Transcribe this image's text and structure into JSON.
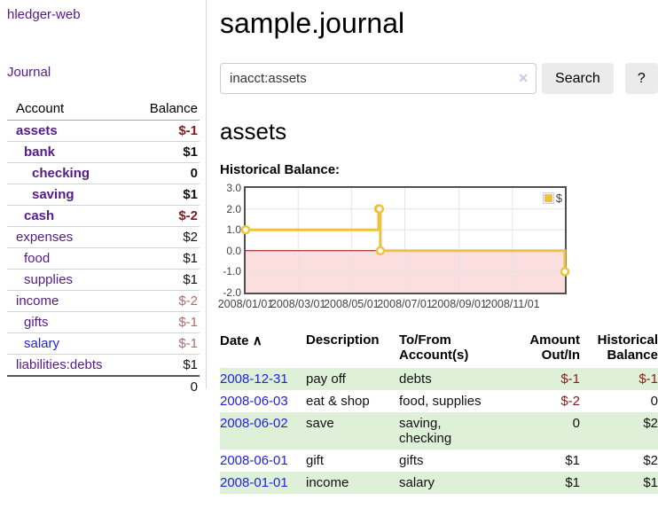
{
  "sidebar": {
    "app_title": "hledger-web",
    "journal_link": "Journal",
    "accounts_header": {
      "account": "Account",
      "balance": "Balance"
    },
    "accounts": [
      {
        "name": "assets",
        "depth": 1,
        "bold": true,
        "balance": "$-1",
        "balance_style": "neg-strong"
      },
      {
        "name": "bank",
        "depth": 2,
        "bold": true,
        "balance": "$1",
        "balance_style": "pos"
      },
      {
        "name": "checking",
        "depth": 3,
        "bold": true,
        "balance": "0",
        "balance_style": "pos"
      },
      {
        "name": "saving",
        "depth": 3,
        "bold": true,
        "balance": "$1",
        "balance_style": "pos"
      },
      {
        "name": "cash",
        "depth": 2,
        "bold": true,
        "balance": "$-2",
        "balance_style": "neg-strong"
      },
      {
        "name": "expenses",
        "depth": 1,
        "bold": false,
        "balance": "$2",
        "balance_style": "pos"
      },
      {
        "name": "food",
        "depth": 2,
        "bold": false,
        "balance": "$1",
        "balance_style": "pos"
      },
      {
        "name": "supplies",
        "depth": 2,
        "bold": false,
        "balance": "$1",
        "balance_style": "pos"
      },
      {
        "name": "income",
        "depth": 1,
        "bold": false,
        "balance": "$-2",
        "balance_style": "neg-muted"
      },
      {
        "name": "gifts",
        "depth": 2,
        "bold": false,
        "balance": "$-1",
        "balance_style": "neg-muted"
      },
      {
        "name": "salary",
        "depth": 2,
        "bold": false,
        "link_color": "blue",
        "balance": "$-1",
        "balance_style": "neg-muted"
      },
      {
        "name": "liabilities:debts",
        "depth": 1,
        "bold": false,
        "balance": "$1",
        "balance_style": "pos"
      }
    ],
    "total": "0"
  },
  "main": {
    "title": "sample.journal",
    "search": {
      "query": "inacct:assets",
      "button_label": "Search",
      "help_label": "?"
    },
    "account_heading": "assets"
  },
  "icons": {
    "clear": "✕",
    "sort_asc": "∧"
  },
  "chart_data": {
    "type": "line",
    "title": "Historical Balance:",
    "steps": true,
    "xlim_days": [
      0,
      365
    ],
    "ylim": [
      -2,
      3
    ],
    "yticks": [
      {
        "v": 3,
        "label": "3.0"
      },
      {
        "v": 2,
        "label": "2.0"
      },
      {
        "v": 1,
        "label": "1.0"
      },
      {
        "v": 0,
        "label": "0.0"
      },
      {
        "v": -1,
        "label": "-1.0"
      },
      {
        "v": -2,
        "label": "-2.0"
      }
    ],
    "xticks": [
      {
        "day": 0,
        "label": "2008/01/01"
      },
      {
        "day": 60,
        "label": "2008/03/01"
      },
      {
        "day": 121,
        "label": "2008/05/01"
      },
      {
        "day": 182,
        "label": "2008/07/01"
      },
      {
        "day": 244,
        "label": "2008/09/01"
      },
      {
        "day": 305,
        "label": "2008/11/01"
      }
    ],
    "series": [
      {
        "name": "$",
        "color": "#edc240",
        "points": [
          {
            "date": "2008-01-01",
            "day": 0,
            "value": 1
          },
          {
            "date": "2008-06-01",
            "day": 152,
            "value": 2
          },
          {
            "date": "2008-06-02",
            "day": 153,
            "value": 2
          },
          {
            "date": "2008-06-03",
            "day": 154,
            "value": 0
          },
          {
            "date": "2008-12-31",
            "day": 365,
            "value": -1
          }
        ]
      }
    ],
    "legend": {
      "label": "$",
      "swatch_color": "#edc240",
      "position": "top-right"
    },
    "negative_region_fill": "#fbdfdf",
    "zero_line_color": "#8b0000",
    "grid_color": "#e4e4e4"
  },
  "register_table": {
    "columns": [
      {
        "label": "Date",
        "align": "left",
        "sorted": true
      },
      {
        "label": "Description",
        "align": "left"
      },
      {
        "label": "To/From Account(s)",
        "align": "left"
      },
      {
        "label": "Amount Out/In",
        "align": "right"
      },
      {
        "label": "Historical Balance",
        "align": "right"
      }
    ],
    "rows": [
      {
        "date": "2008-12-31",
        "description": "pay off",
        "accounts": "debts",
        "amount": "$-1",
        "amount_negative": true,
        "balance": "$-1",
        "balance_negative": true
      },
      {
        "date": "2008-06-03",
        "description": "eat & shop",
        "accounts": "food, supplies",
        "amount": "$-2",
        "amount_negative": true,
        "balance": "0",
        "balance_negative": false
      },
      {
        "date": "2008-06-02",
        "description": "save",
        "accounts": "saving, checking",
        "amount": "0",
        "amount_negative": false,
        "balance": "$2",
        "balance_negative": false
      },
      {
        "date": "2008-06-01",
        "description": "gift",
        "accounts": "gifts",
        "amount": "$1",
        "amount_negative": false,
        "balance": "$2",
        "balance_negative": false
      },
      {
        "date": "2008-01-01",
        "description": "income",
        "accounts": "salary",
        "amount": "$1",
        "amount_negative": false,
        "balance": "$1",
        "balance_negative": false
      }
    ]
  }
}
